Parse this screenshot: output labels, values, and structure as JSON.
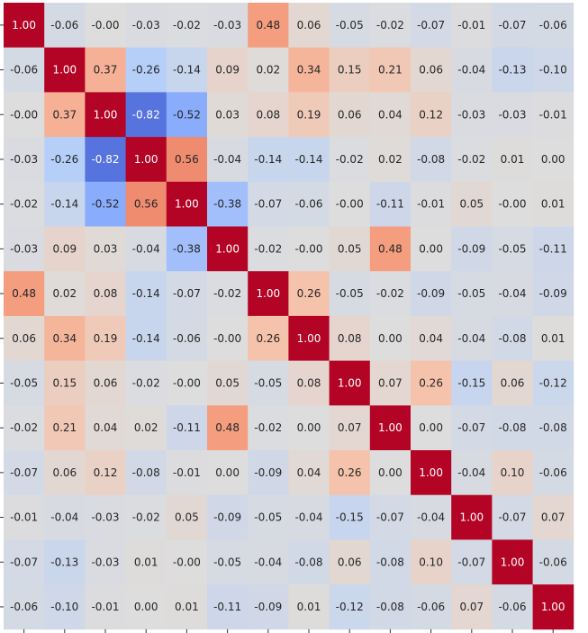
{
  "chart_data": {
    "type": "heatmap",
    "title": "",
    "xlabel": "",
    "ylabel": "",
    "x_tick_labels": [],
    "y_tick_labels": [],
    "value_range": [
      -1,
      1
    ],
    "colormap": "coolwarm",
    "colors": {
      "low": "#3b4cc0",
      "mid": "#dddddd",
      "high": "#b40426"
    },
    "annotation_format": "0.00",
    "matrix": [
      [
        1.0,
        -0.06,
        -0.0,
        -0.03,
        -0.02,
        -0.03,
        0.48,
        0.06,
        -0.05,
        -0.02,
        -0.07,
        -0.01,
        -0.07,
        -0.06
      ],
      [
        -0.06,
        1.0,
        0.37,
        -0.26,
        -0.14,
        0.09,
        0.02,
        0.34,
        0.15,
        0.21,
        0.06,
        -0.04,
        -0.13,
        -0.1
      ],
      [
        -0.0,
        0.37,
        1.0,
        -0.82,
        -0.52,
        0.03,
        0.08,
        0.19,
        0.06,
        0.04,
        0.12,
        -0.03,
        -0.03,
        -0.01
      ],
      [
        -0.03,
        -0.26,
        -0.82,
        1.0,
        0.56,
        -0.04,
        -0.14,
        -0.14,
        -0.02,
        0.02,
        -0.08,
        -0.02,
        0.01,
        0.0
      ],
      [
        -0.02,
        -0.14,
        -0.52,
        0.56,
        1.0,
        -0.38,
        -0.07,
        -0.06,
        -0.0,
        -0.11,
        -0.01,
        0.05,
        -0.0,
        0.01
      ],
      [
        -0.03,
        0.09,
        0.03,
        -0.04,
        -0.38,
        1.0,
        -0.02,
        -0.0,
        0.05,
        0.48,
        0.0,
        -0.09,
        -0.05,
        -0.11
      ],
      [
        0.48,
        0.02,
        0.08,
        -0.14,
        -0.07,
        -0.02,
        1.0,
        0.26,
        -0.05,
        -0.02,
        -0.09,
        -0.05,
        -0.04,
        -0.09
      ],
      [
        0.06,
        0.34,
        0.19,
        -0.14,
        -0.06,
        -0.0,
        0.26,
        1.0,
        0.08,
        0.0,
        0.04,
        -0.04,
        -0.08,
        0.01
      ],
      [
        -0.05,
        0.15,
        0.06,
        -0.02,
        -0.0,
        0.05,
        -0.05,
        0.08,
        1.0,
        0.07,
        0.26,
        -0.15,
        0.06,
        -0.12
      ],
      [
        -0.02,
        0.21,
        0.04,
        0.02,
        -0.11,
        0.48,
        -0.02,
        0.0,
        0.07,
        1.0,
        0.0,
        -0.07,
        -0.08,
        -0.08
      ],
      [
        -0.07,
        0.06,
        0.12,
        -0.08,
        -0.01,
        0.0,
        -0.09,
        0.04,
        0.26,
        0.0,
        1.0,
        -0.04,
        0.1,
        -0.06
      ],
      [
        -0.01,
        -0.04,
        -0.03,
        -0.02,
        0.05,
        -0.09,
        -0.05,
        -0.04,
        -0.15,
        -0.07,
        -0.04,
        1.0,
        -0.07,
        0.07
      ],
      [
        -0.07,
        -0.13,
        -0.03,
        0.01,
        -0.0,
        -0.05,
        -0.04,
        -0.08,
        0.06,
        -0.08,
        0.1,
        -0.07,
        1.0,
        -0.06
      ],
      [
        -0.06,
        -0.1,
        -0.01,
        0.0,
        0.01,
        -0.11,
        -0.09,
        0.01,
        -0.12,
        -0.08,
        -0.06,
        0.07,
        -0.06,
        1.0
      ]
    ],
    "cell_labels": [
      [
        "1.00",
        "-0.06",
        "-0.00",
        "-0.03",
        "-0.02",
        "-0.03",
        "0.48",
        "0.06",
        "-0.05",
        "-0.02",
        "-0.07",
        "-0.01",
        "-0.07",
        "-0.06"
      ],
      [
        "-0.06",
        "1.00",
        "0.37",
        "-0.26",
        "-0.14",
        "0.09",
        "0.02",
        "0.34",
        "0.15",
        "0.21",
        "0.06",
        "-0.04",
        "-0.13",
        "-0.10"
      ],
      [
        "-0.00",
        "0.37",
        "1.00",
        "-0.82",
        "-0.52",
        "0.03",
        "0.08",
        "0.19",
        "0.06",
        "0.04",
        "0.12",
        "-0.03",
        "-0.03",
        "-0.01"
      ],
      [
        "-0.03",
        "-0.26",
        "-0.82",
        "1.00",
        "0.56",
        "-0.04",
        "-0.14",
        "-0.14",
        "-0.02",
        "0.02",
        "-0.08",
        "-0.02",
        "0.01",
        "0.00"
      ],
      [
        "-0.02",
        "-0.14",
        "-0.52",
        "0.56",
        "1.00",
        "-0.38",
        "-0.07",
        "-0.06",
        "-0.00",
        "-0.11",
        "-0.01",
        "0.05",
        "-0.00",
        "0.01"
      ],
      [
        "-0.03",
        "0.09",
        "0.03",
        "-0.04",
        "-0.38",
        "1.00",
        "-0.02",
        "-0.00",
        "0.05",
        "0.48",
        "0.00",
        "-0.09",
        "-0.05",
        "-0.11"
      ],
      [
        "0.48",
        "0.02",
        "0.08",
        "-0.14",
        "-0.07",
        "-0.02",
        "1.00",
        "0.26",
        "-0.05",
        "-0.02",
        "-0.09",
        "-0.05",
        "-0.04",
        "-0.09"
      ],
      [
        "0.06",
        "0.34",
        "0.19",
        "-0.14",
        "-0.06",
        "-0.00",
        "0.26",
        "1.00",
        "0.08",
        "0.00",
        "0.04",
        "-0.04",
        "-0.08",
        "0.01"
      ],
      [
        "-0.05",
        "0.15",
        "0.06",
        "-0.02",
        "-0.00",
        "0.05",
        "-0.05",
        "0.08",
        "1.00",
        "0.07",
        "0.26",
        "-0.15",
        "0.06",
        "-0.12"
      ],
      [
        "-0.02",
        "0.21",
        "0.04",
        "0.02",
        "-0.11",
        "0.48",
        "-0.02",
        "0.00",
        "0.07",
        "1.00",
        "0.00",
        "-0.07",
        "-0.08",
        "-0.08"
      ],
      [
        "-0.07",
        "0.06",
        "0.12",
        "-0.08",
        "-0.01",
        "0.00",
        "-0.09",
        "0.04",
        "0.26",
        "0.00",
        "1.00",
        "-0.04",
        "0.10",
        "-0.06"
      ],
      [
        "-0.01",
        "-0.04",
        "-0.03",
        "-0.02",
        "0.05",
        "-0.09",
        "-0.05",
        "-0.04",
        "-0.15",
        "-0.07",
        "-0.04",
        "1.00",
        "-0.07",
        "0.07"
      ],
      [
        "-0.07",
        "-0.13",
        "-0.03",
        "0.01",
        "-0.00",
        "-0.05",
        "-0.04",
        "-0.08",
        "0.06",
        "-0.08",
        "0.10",
        "-0.07",
        "1.00",
        "-0.06"
      ],
      [
        "-0.06",
        "-0.10",
        "-0.01",
        "0.00",
        "0.01",
        "-0.11",
        "-0.09",
        "0.01",
        "-0.12",
        "-0.08",
        "-0.06",
        "0.07",
        "-0.06",
        "1.00"
      ]
    ]
  }
}
